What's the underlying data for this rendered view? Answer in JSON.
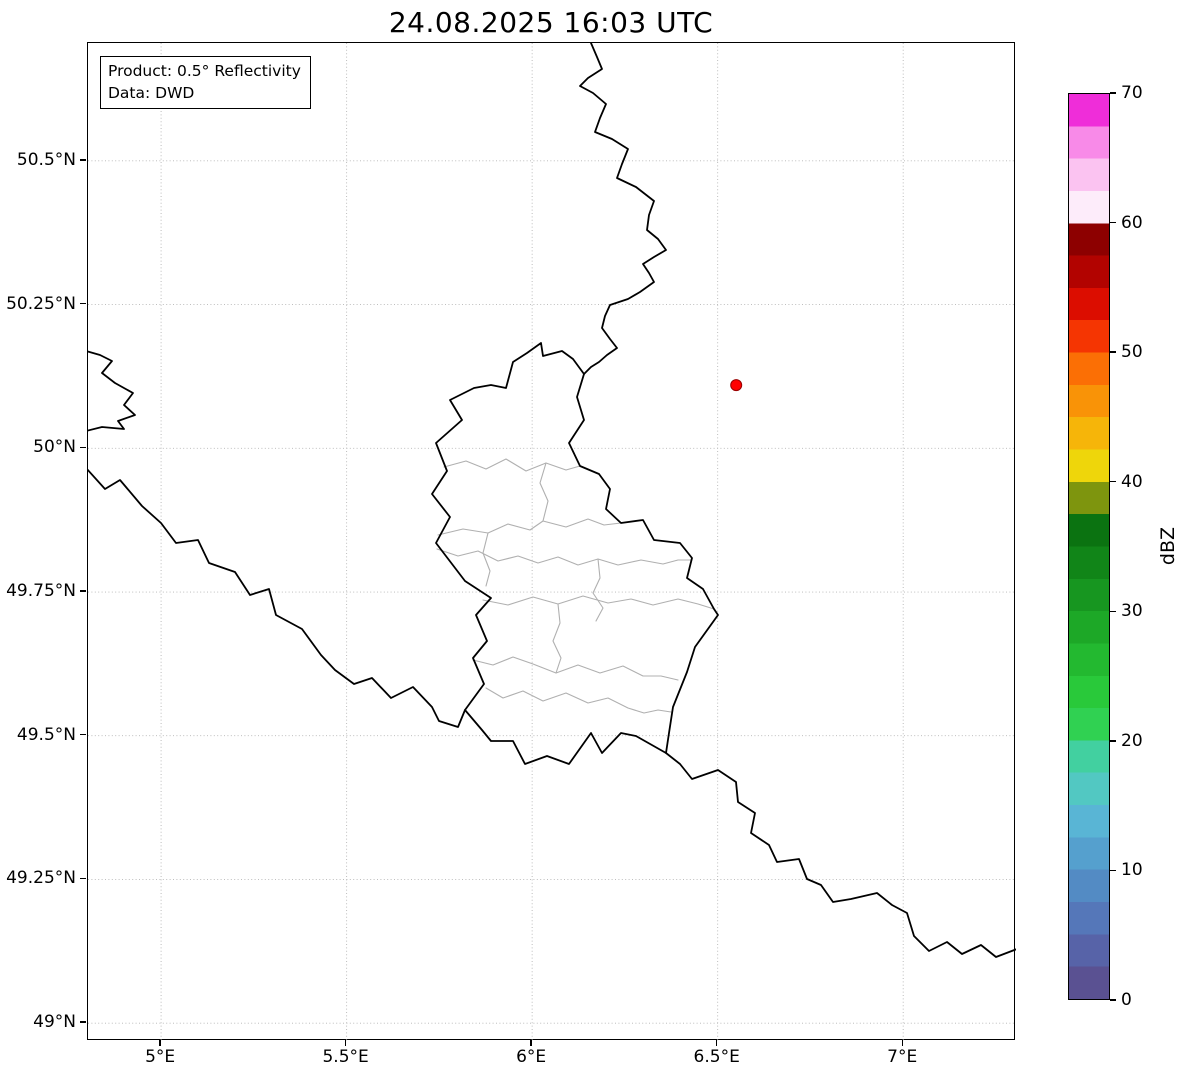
{
  "title": "24.08.2025 16:03 UTC",
  "product_box": {
    "line1": "Product: 0.5° Reflectivity",
    "line2": "Data: DWD"
  },
  "axes": {
    "extent": {
      "lon_min": 4.803,
      "lon_max": 7.304,
      "lat_min": 48.969,
      "lat_max": 50.705
    },
    "x_ticks": [
      {
        "lon": 5.0,
        "label": "5°E"
      },
      {
        "lon": 5.5,
        "label": "5.5°E"
      },
      {
        "lon": 6.0,
        "label": "6°E"
      },
      {
        "lon": 6.5,
        "label": "6.5°E"
      },
      {
        "lon": 7.0,
        "label": "7°E"
      }
    ],
    "y_ticks": [
      {
        "lat": 50.5,
        "label": "50.5°N"
      },
      {
        "lat": 50.25,
        "label": "50.25°N"
      },
      {
        "lat": 50.0,
        "label": "50°N"
      },
      {
        "lat": 49.75,
        "label": "49.75°N"
      },
      {
        "lat": 49.5,
        "label": "49.5°N"
      },
      {
        "lat": 49.25,
        "label": "49.25°N"
      },
      {
        "lat": 49.0,
        "label": "49°N"
      }
    ]
  },
  "marker": {
    "lon": 6.55,
    "lat": 50.11,
    "color": "#ff0000",
    "edge_color": "#990000"
  },
  "map": {
    "border_color": "#000000",
    "district_border_color": "#b0b0b0",
    "grid_color": "#b5b5b5"
  },
  "colorbar": {
    "label": "dBZ",
    "min": 0,
    "max": 70,
    "ticks": [
      {
        "value": 0,
        "label": "0"
      },
      {
        "value": 10,
        "label": "10"
      },
      {
        "value": 20,
        "label": "20"
      },
      {
        "value": 30,
        "label": "30"
      },
      {
        "value": 40,
        "label": "40"
      },
      {
        "value": 50,
        "label": "50"
      },
      {
        "value": 60,
        "label": "60"
      },
      {
        "value": 70,
        "label": "70"
      }
    ],
    "band_step": 2.5,
    "band_colors": [
      "#5a5192",
      "#5763a8",
      "#5577b9",
      "#538bc4",
      "#55a0ce",
      "#59b5d5",
      "#52c8c2",
      "#42d0a0",
      "#30d152",
      "#29c93a",
      "#23b930",
      "#1da827",
      "#179620",
      "#118518",
      "#0b7311",
      "#7e950e",
      "#eed60b",
      "#f6b509",
      "#f99307",
      "#fb6f05",
      "#f53502",
      "#dc0d00",
      "#b20300",
      "#8d0000",
      "#fdecfa",
      "#fbc3f1",
      "#f88ae8",
      "#ef2dd9"
    ]
  }
}
